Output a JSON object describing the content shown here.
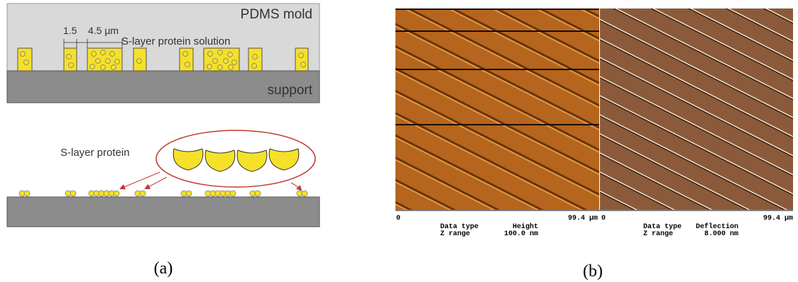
{
  "panel_a": {
    "top": {
      "mold_label": "PDMS mold",
      "gap_width": "1.5",
      "pillar_width": "4.5 µm",
      "solution_label": "S-layer protein solution",
      "support_label": "support"
    },
    "bottom": {
      "protein_label": "S-layer protein"
    },
    "caption": "(a)"
  },
  "panel_b": {
    "images": [
      {
        "axis_start": "0",
        "axis_end": "99.4 µm",
        "data_type_label": "Data type",
        "data_type": "Height",
        "z_range_label": "Z range",
        "z_range": "100.0 nm"
      },
      {
        "axis_start": "0",
        "axis_end": "99.4 µm",
        "data_type_label": "Data type",
        "data_type": "Deflection",
        "z_range_label": "Z range",
        "z_range": "8.000 nm"
      }
    ],
    "caption": "(b)"
  }
}
